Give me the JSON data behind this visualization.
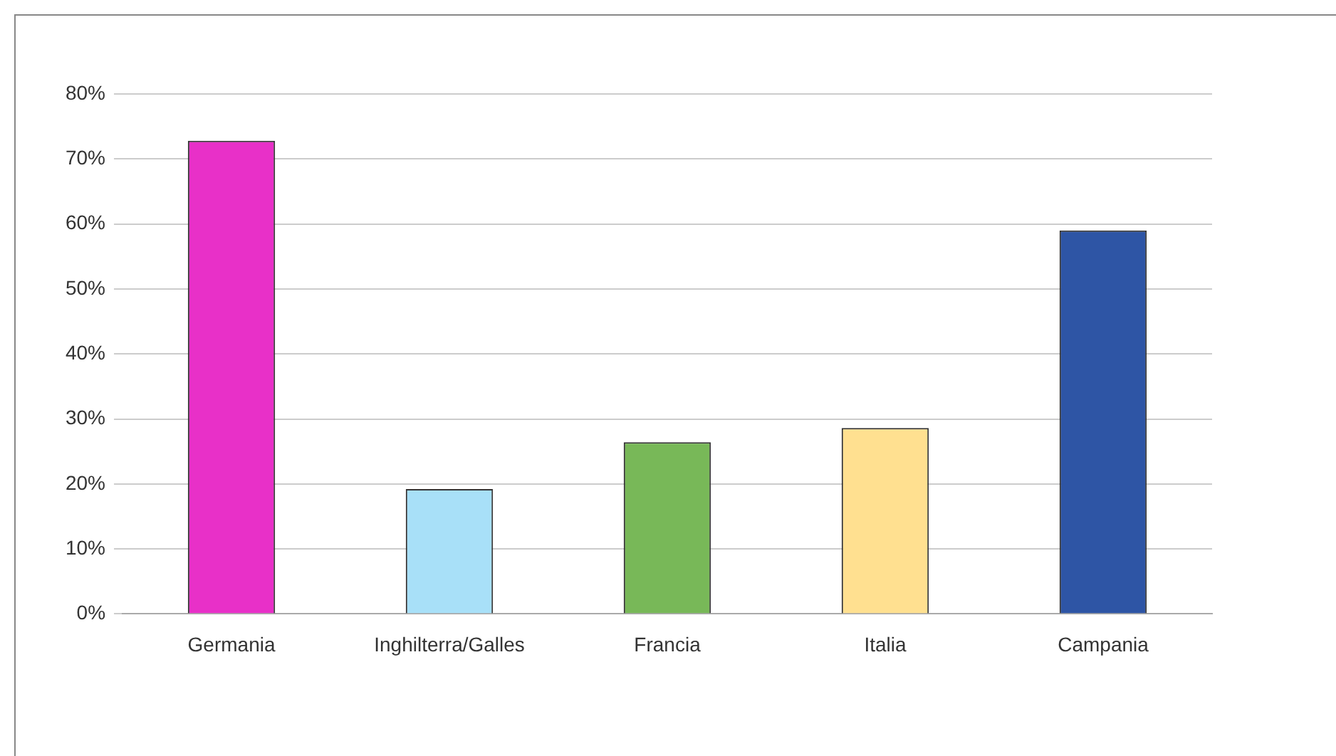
{
  "chart_data": {
    "type": "bar",
    "categories": [
      "Germania",
      "Inghilterra/Galles",
      "Francia",
      "Italia",
      "Campania"
    ],
    "values": [
      72.8,
      19.2,
      26.4,
      28.6,
      59
    ],
    "colors": [
      "#e830c8",
      "#a8e0f8",
      "#78b858",
      "#ffe090",
      "#2e55a5"
    ],
    "ylim": [
      0,
      80
    ],
    "yticks": [
      {
        "value": 0,
        "label": "0%"
      },
      {
        "value": 10,
        "label": "10%"
      },
      {
        "value": 20,
        "label": "20%"
      },
      {
        "value": 30,
        "label": "30%"
      },
      {
        "value": 40,
        "label": "40%"
      },
      {
        "value": 50,
        "label": "50%"
      },
      {
        "value": 60,
        "label": "60%"
      },
      {
        "value": 70,
        "label": "70%"
      },
      {
        "value": 80,
        "label": "80%"
      }
    ],
    "grid": "y",
    "legend": false
  }
}
